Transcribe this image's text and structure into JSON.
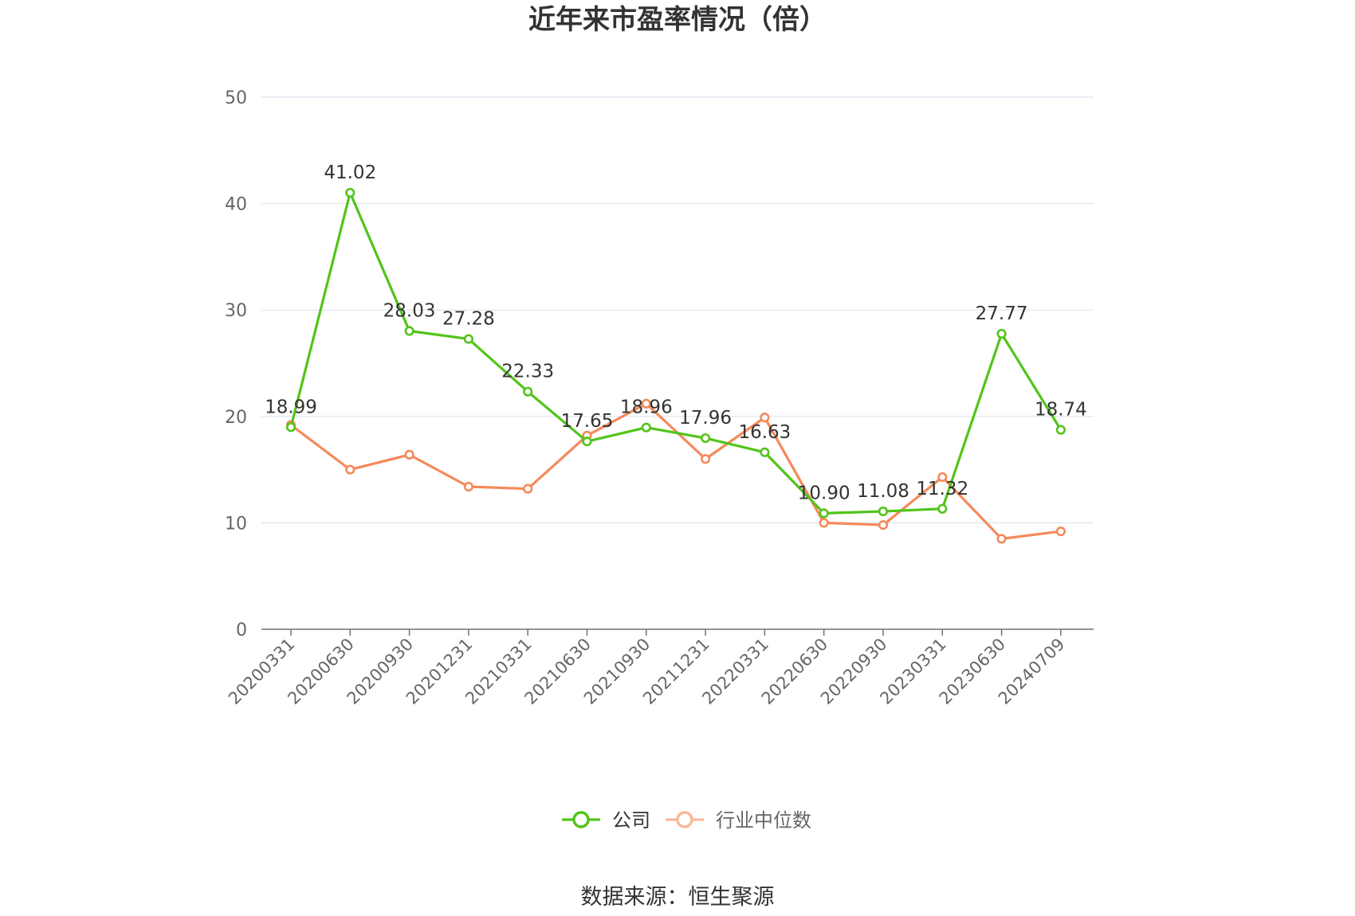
{
  "chart_data": {
    "type": "line",
    "title": "近年来市盈率情况（倍）",
    "categories": [
      "20200331",
      "20200630",
      "20200930",
      "20201231",
      "20210331",
      "20210630",
      "20210930",
      "20211231",
      "20220331",
      "20220630",
      "20220930",
      "20230331",
      "20230630",
      "20240709"
    ],
    "series": [
      {
        "name": "公司",
        "color": "#52c41a",
        "values": [
          18.99,
          41.02,
          28.03,
          27.28,
          22.33,
          17.65,
          18.96,
          17.96,
          16.63,
          10.9,
          11.08,
          11.32,
          27.77,
          18.74
        ],
        "labels": [
          "18.99",
          "41.02",
          "28.03",
          "27.28",
          "22.33",
          "17.65",
          "18.96",
          "17.96",
          "16.63",
          "10.90",
          "11.08",
          "11.32",
          "27.77",
          "18.74"
        ]
      },
      {
        "name": "行业中位数",
        "color": "#f5895a",
        "values": [
          19.2,
          15.0,
          16.4,
          13.4,
          13.2,
          18.2,
          21.2,
          16.0,
          19.9,
          10.0,
          9.8,
          14.3,
          8.5,
          9.2
        ]
      }
    ],
    "yticks": [
      "0",
      "10",
      "20",
      "30",
      "40",
      "50"
    ],
    "ylim": [
      0,
      50
    ],
    "grid": true,
    "legend_position": "bottom"
  },
  "source_text": "数据来源：恒生聚源"
}
